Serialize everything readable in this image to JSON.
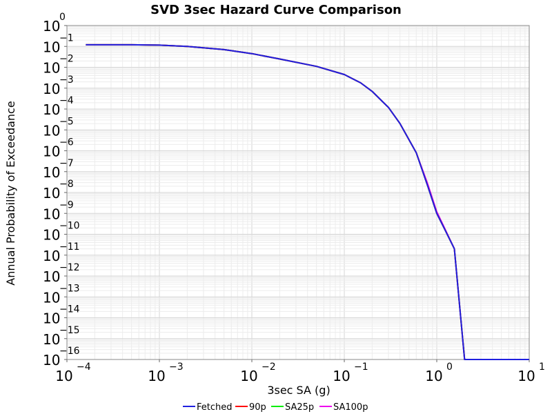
{
  "chart_data": {
    "type": "line",
    "title": "SVD 3sec Hazard Curve Comparison",
    "xlabel": "3sec SA (g)",
    "ylabel": "Annual Probability of Exceedance",
    "xscale": "log",
    "yscale": "log",
    "xlim": [
      0.0001,
      10
    ],
    "ylim": [
      1e-16,
      1
    ],
    "grid": true,
    "legend_position": "bottom",
    "x_tick_labels": [
      {
        "base": "10",
        "exp": "−4",
        "value": 0.0001
      },
      {
        "base": "10",
        "exp": "−3",
        "value": 0.001
      },
      {
        "base": "10",
        "exp": "−2",
        "value": 0.01
      },
      {
        "base": "10",
        "exp": "−1",
        "value": 0.1
      },
      {
        "base": "10",
        "exp": "0",
        "value": 1
      },
      {
        "base": "10",
        "exp": "1",
        "value": 10
      }
    ],
    "y_tick_labels": [
      {
        "base": "10",
        "exp": "0",
        "value": 1
      },
      {
        "base": "10",
        "exp": "−1",
        "value": 0.1
      },
      {
        "base": "10",
        "exp": "−2",
        "value": 0.01
      },
      {
        "base": "10",
        "exp": "−3",
        "value": 0.001
      },
      {
        "base": "10",
        "exp": "−4",
        "value": 0.0001
      },
      {
        "base": "10",
        "exp": "−5",
        "value": 1e-05
      },
      {
        "base": "10",
        "exp": "−6",
        "value": 1e-06
      },
      {
        "base": "10",
        "exp": "−7",
        "value": 1e-07
      },
      {
        "base": "10",
        "exp": "−8",
        "value": 1e-08
      },
      {
        "base": "10",
        "exp": "−9",
        "value": 1e-09
      },
      {
        "base": "10",
        "exp": "−10",
        "value": 1e-10
      },
      {
        "base": "10",
        "exp": "−11",
        "value": 1e-11
      },
      {
        "base": "10",
        "exp": "−12",
        "value": 1e-12
      },
      {
        "base": "10",
        "exp": "−13",
        "value": 1e-13
      },
      {
        "base": "10",
        "exp": "−14",
        "value": 1e-14
      },
      {
        "base": "10",
        "exp": "−15",
        "value": 1e-15
      },
      {
        "base": "10",
        "exp": "−16",
        "value": 1e-16
      }
    ],
    "series": [
      {
        "name": "Fetched",
        "color": "#2020e0",
        "x": [
          0.00016,
          0.0005,
          0.001,
          0.002,
          0.005,
          0.01,
          0.02,
          0.05,
          0.1,
          0.15,
          0.2,
          0.3,
          0.4,
          0.6,
          0.8,
          1.0,
          1.2,
          1.55,
          2.0,
          5.0,
          10.0
        ],
        "y": [
          0.12,
          0.12,
          0.115,
          0.1,
          0.07,
          0.045,
          0.025,
          0.011,
          0.0045,
          0.0018,
          0.0007,
          0.00012,
          2e-05,
          8e-07,
          2e-08,
          1e-09,
          2e-10,
          2e-11,
          1e-16,
          1e-16,
          1e-16
        ]
      },
      {
        "name": "90p",
        "color": "#ff0000",
        "x": [
          0.00016,
          0.0005,
          0.001,
          0.002,
          0.005,
          0.01,
          0.02,
          0.05,
          0.1,
          0.15,
          0.2,
          0.3,
          0.4,
          0.6,
          0.8,
          1.0,
          1.2,
          1.55,
          2.0,
          5.0,
          10.0
        ],
        "y": [
          0.12,
          0.12,
          0.115,
          0.1,
          0.07,
          0.045,
          0.025,
          0.011,
          0.0045,
          0.0018,
          0.0007,
          0.00012,
          2e-05,
          8e-07,
          2e-08,
          1e-09,
          2e-10,
          2e-11,
          1e-16,
          1e-16,
          1e-16
        ]
      },
      {
        "name": "SA25p",
        "color": "#00ee00",
        "x": [
          0.00016,
          0.0005,
          0.001,
          0.002,
          0.005,
          0.01,
          0.02,
          0.05,
          0.1,
          0.15,
          0.2,
          0.3,
          0.4,
          0.6,
          0.8,
          1.0,
          1.2,
          1.55,
          2.0,
          5.0,
          10.0
        ],
        "y": [
          0.12,
          0.12,
          0.115,
          0.1,
          0.07,
          0.045,
          0.025,
          0.011,
          0.0045,
          0.0018,
          0.0007,
          0.00012,
          2e-05,
          8e-07,
          2e-08,
          1e-09,
          2e-10,
          2e-11,
          1e-16,
          1e-16,
          1e-16
        ]
      },
      {
        "name": "SA100p",
        "color": "#ee00ee",
        "x": [
          0.00016,
          0.0005,
          0.001,
          0.002,
          0.005,
          0.01,
          0.02,
          0.05,
          0.1,
          0.15,
          0.2,
          0.3,
          0.4,
          0.6,
          0.8,
          1.0,
          1.2,
          1.55,
          2.0,
          5.0,
          10.0
        ],
        "y": [
          0.12,
          0.12,
          0.115,
          0.1,
          0.07,
          0.045,
          0.025,
          0.011,
          0.0045,
          0.0018,
          0.0007,
          0.00012,
          2e-05,
          8e-07,
          2.5e-08,
          1.2e-09,
          2.2e-10,
          2e-11,
          1e-16,
          1e-16,
          1e-16
        ]
      }
    ],
    "draw_order": [
      "SA100p",
      "SA25p",
      "90p",
      "Fetched"
    ]
  }
}
